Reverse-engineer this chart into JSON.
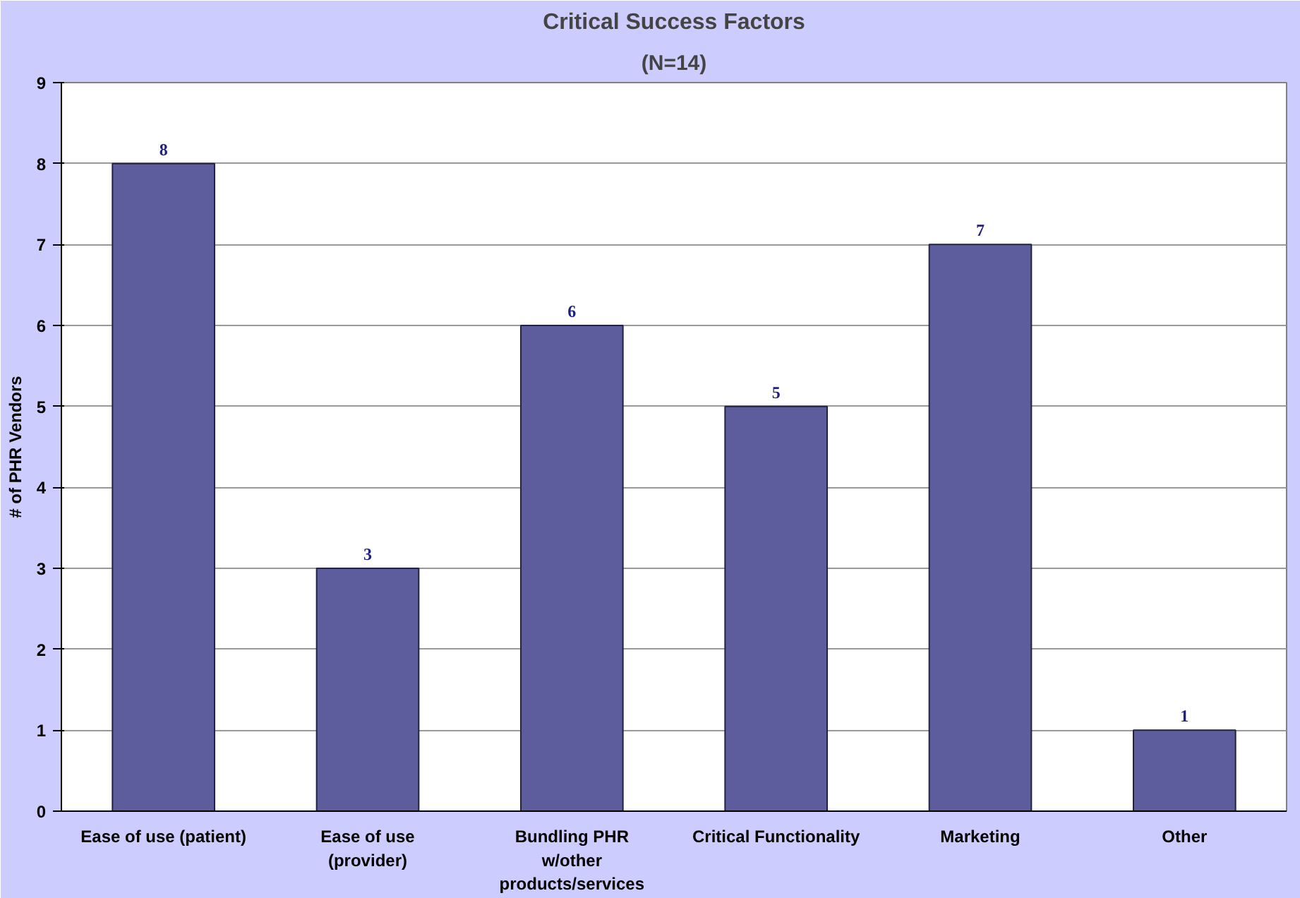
{
  "chart_data": {
    "type": "bar",
    "title": "Critical Success Factors",
    "subtitle": "(N=14)",
    "ylabel": "# of PHR Vendors",
    "categories": [
      "Ease of use (patient)",
      "Ease of use\n(provider)",
      "Bundling PHR\nw/other\nproducts/services",
      "Critical Functionality",
      "Marketing",
      "Other"
    ],
    "values": [
      8,
      3,
      6,
      5,
      7,
      1
    ],
    "color": "#5d5d9e",
    "data_labels": true,
    "ylim": [
      0,
      9
    ],
    "yticks": [
      0,
      1,
      2,
      3,
      4,
      5,
      6,
      7,
      8,
      9
    ],
    "grid": "y"
  }
}
